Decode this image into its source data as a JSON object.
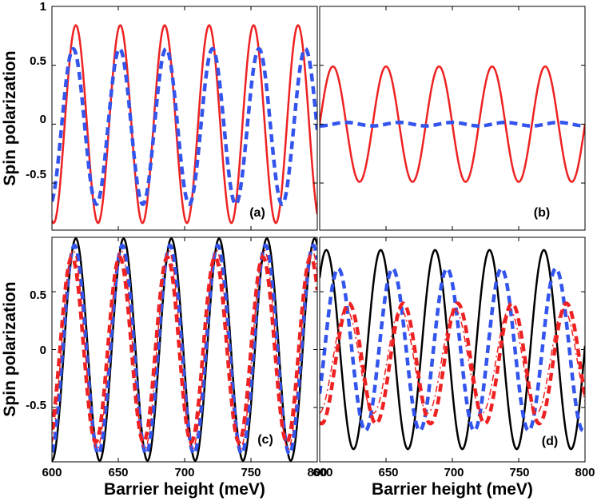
{
  "figure": {
    "ylabel_top": "Spin polarization",
    "ylabel_bottom": "Spin polarization",
    "xlabel_left": "Barrier height (meV)",
    "xlabel_right": "Barrier height (meV)",
    "xtick_labels": [
      "600",
      "650",
      "700",
      "750",
      "800"
    ],
    "ytick_labels_top": [
      "1",
      "0.5",
      "0",
      "-0.5"
    ],
    "ytick_labels_bottom": [
      "0.5",
      "0",
      "-0.5"
    ],
    "colors": {
      "red": "#ee2222",
      "blue": "#3355ee",
      "black": "#000000"
    }
  },
  "chart_data": [
    {
      "panel": "(a)",
      "type": "line",
      "xlim": [
        600,
        800
      ],
      "ylim": [
        -0.9,
        1.0
      ],
      "xlabel": "",
      "ylabel": "Spin polarization",
      "series": [
        {
          "name": "red solid",
          "color": "#ee2222",
          "style": "solid",
          "amplitude": 0.84,
          "period": 33.5,
          "phase_peak_x": 618
        },
        {
          "name": "blue dashed",
          "color": "#3355ee",
          "style": "dashed",
          "amplitude": 0.66,
          "period": 35.0,
          "phase_peak_x": 616,
          "offset": -0.02
        }
      ]
    },
    {
      "panel": "(b)",
      "type": "line",
      "xlim": [
        600,
        800
      ],
      "ylim": [
        -0.9,
        1.0
      ],
      "xlabel": "",
      "ylabel": "",
      "series": [
        {
          "name": "red solid",
          "color": "#ee2222",
          "style": "solid",
          "amplitude": 0.49,
          "period": 40.0,
          "phase_peak_x": 610
        },
        {
          "name": "blue dashed",
          "color": "#3355ee",
          "style": "dashed",
          "amplitude": 0.015,
          "period": 40.0,
          "phase_peak_x": 620
        }
      ]
    },
    {
      "panel": "(c)",
      "type": "line",
      "xlim": [
        600,
        800
      ],
      "ylim": [
        -0.97,
        0.97
      ],
      "xlabel": "Barrier height (meV)",
      "ylabel": "Spin polarization",
      "series": [
        {
          "name": "black solid",
          "color": "#000000",
          "style": "solid",
          "amplitude": 0.96,
          "period": 36.0,
          "phase_peak_x": 618
        },
        {
          "name": "blue dashed",
          "color": "#3355ee",
          "style": "dashed",
          "amplitude": 0.9,
          "period": 36.0,
          "phase_peak_x": 617
        },
        {
          "name": "red dashed",
          "color": "#ee2222",
          "style": "dashed",
          "amplitude": 0.8,
          "period": 36.0,
          "phase_peak_x": 615
        },
        {
          "name": "red dash-dot",
          "color": "#ee2222",
          "style": "dashdot",
          "amplitude": 0.86,
          "period": 36.0,
          "phase_peak_x": 616
        }
      ]
    },
    {
      "panel": "(d)",
      "type": "line",
      "xlim": [
        600,
        800
      ],
      "ylim": [
        -0.97,
        0.97
      ],
      "xlabel": "Barrier height (meV)",
      "ylabel": "",
      "series": [
        {
          "name": "black solid",
          "color": "#000000",
          "style": "solid",
          "amplitude": 0.86,
          "period": 41.0,
          "phase_peak_x": 605
        },
        {
          "name": "blue dashed",
          "color": "#3355ee",
          "style": "dashed",
          "amplitude": 0.7,
          "period": 41.0,
          "phase_peak_x": 614
        },
        {
          "name": "red dashed",
          "color": "#ee2222",
          "style": "dashed",
          "amplitude": 0.52,
          "period": 41.0,
          "phase_peak_x": 622,
          "offset": -0.12
        },
        {
          "name": "red dash-dot",
          "color": "#ee2222",
          "style": "dashdot",
          "amplitude": 0.45,
          "period": 41.0,
          "phase_peak_x": 620,
          "offset": -0.1
        }
      ]
    }
  ]
}
